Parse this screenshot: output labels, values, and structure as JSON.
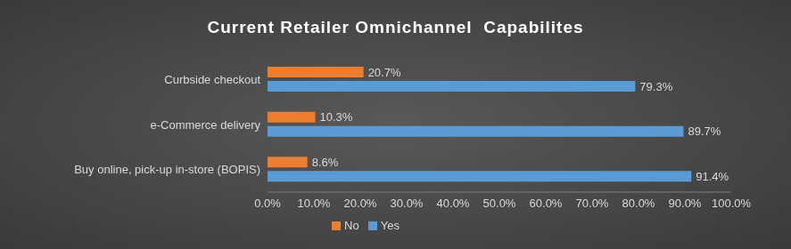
{
  "chart_data": {
    "type": "bar",
    "title": "Current Retailer Omnichannel  Capabilites",
    "orientation": "horizontal",
    "categories": [
      "Curbside checkout",
      "e-Commerce delivery",
      "Buy online, pick-up in-store (BOPIS)"
    ],
    "series": [
      {
        "name": "No",
        "color": "#ED7D31",
        "values": [
          20.7,
          10.3,
          8.6
        ],
        "value_labels": [
          "20.7%",
          "10.3%",
          "8.6%"
        ]
      },
      {
        "name": "Yes",
        "color": "#5B9BD5",
        "values": [
          79.3,
          89.7,
          91.4
        ],
        "value_labels": [
          "79.3%",
          "89.7%",
          "91.4%"
        ]
      }
    ],
    "xlim": [
      0,
      100
    ],
    "xticks": [
      {
        "value": 0,
        "label": "0.0%"
      },
      {
        "value": 10,
        "label": "10.0%"
      },
      {
        "value": 20,
        "label": "20.0%"
      },
      {
        "value": 30,
        "label": "30.0%"
      },
      {
        "value": 40,
        "label": "40.0%"
      },
      {
        "value": 50,
        "label": "50.0%"
      },
      {
        "value": 60,
        "label": "60.0%"
      },
      {
        "value": 70,
        "label": "70.0%"
      },
      {
        "value": 80,
        "label": "80.0%"
      },
      {
        "value": 90,
        "label": "90.0%"
      },
      {
        "value": 100,
        "label": "100.0%"
      }
    ],
    "data_labels": true,
    "legend": "bottom",
    "grid": false
  }
}
